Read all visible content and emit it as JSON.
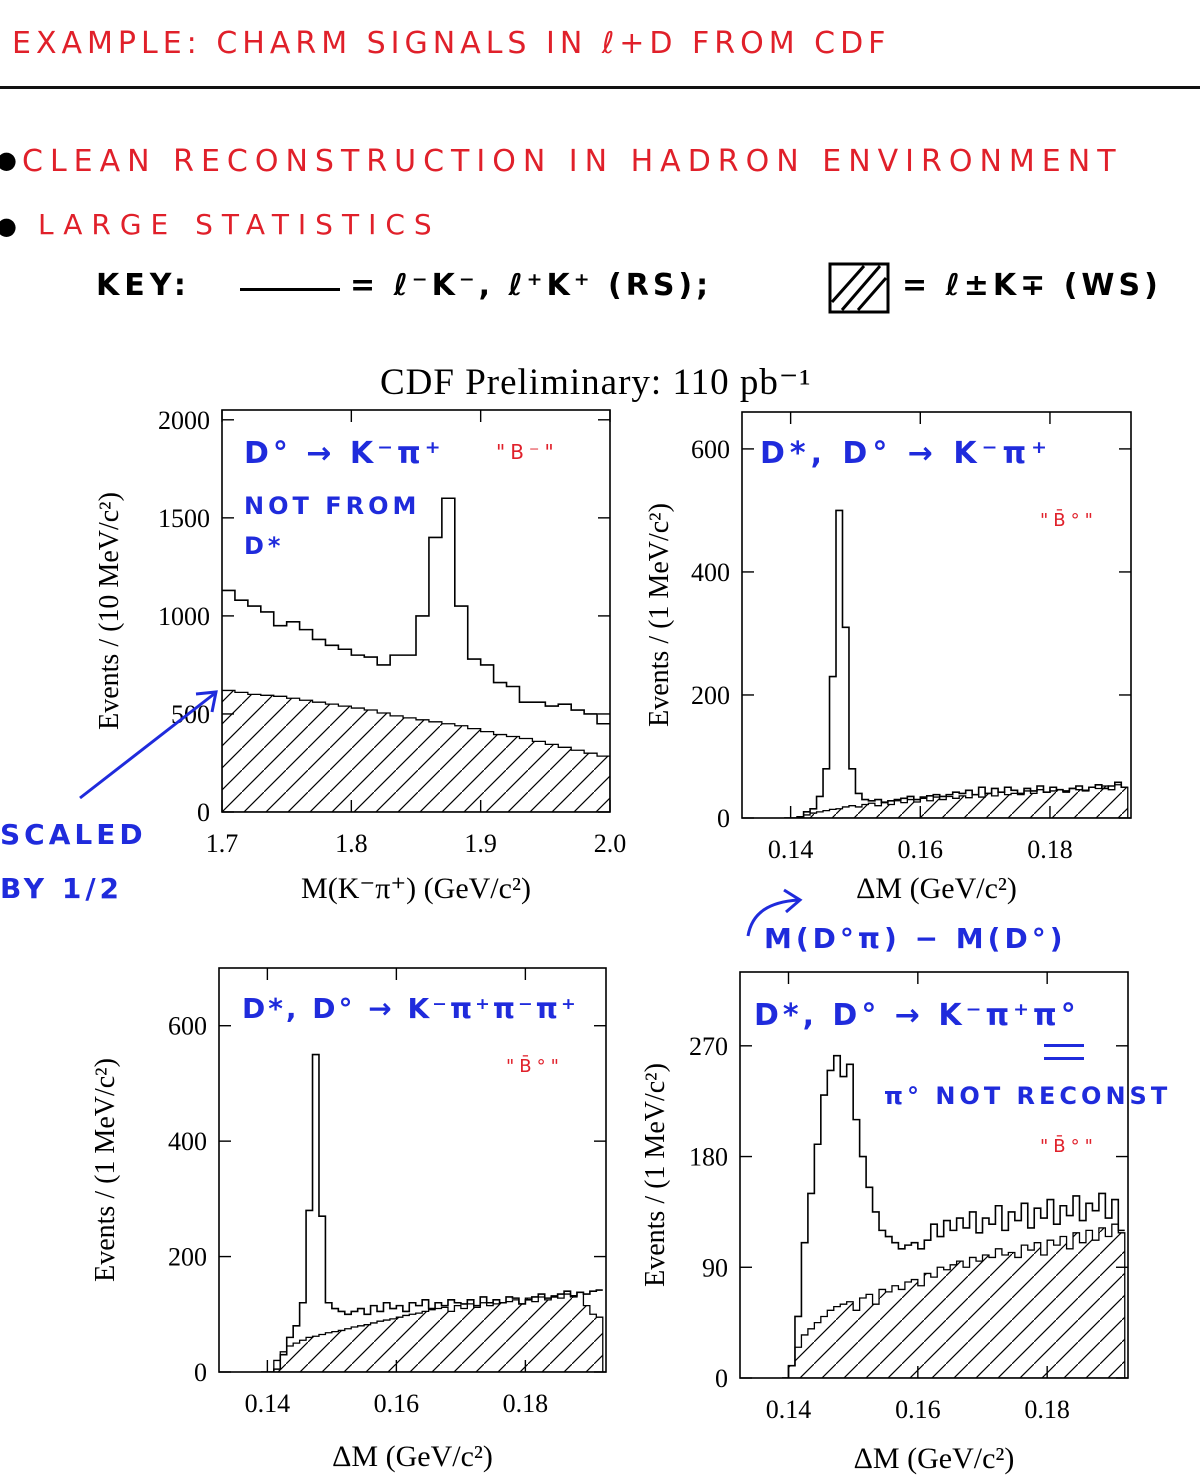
{
  "header": {
    "title": "EXAMPLE: CHARM SIGNALS IN ℓ+D FROM CDF",
    "bullet1": "CLEAN RECONSTRUCTION IN HADRON ENVIRONMENT",
    "bullet2": "LARGE STATISTICS",
    "key_label": "KEY:",
    "key_rs": "= ℓ⁻K⁻, ℓ⁺K⁺ (RS);",
    "key_ws": "= ℓ±K∓ (WS)"
  },
  "annotations": {
    "scaled_line1": "SCALED",
    "scaled_line2": "BY 1/2",
    "dm_def": "M(D°π) − M(D°)"
  },
  "colors": {
    "red": "#e0202a",
    "blue": "#1f2bdc",
    "black": "#000000"
  },
  "chart_data": [
    {
      "type": "area",
      "figure_title": "CDF Preliminary:  110 pb⁻¹",
      "panel_label": "D° → K⁻π⁺",
      "panel_note": "NOT FROM D*",
      "tag": "\"B⁻\"",
      "xlabel": "M(K⁻π⁺) (GeV/c²)",
      "ylabel": "Events / (10 MeV/c²)",
      "xlim": [
        1.7,
        2.0
      ],
      "ylim": [
        0,
        2050
      ],
      "xticks": [
        "1.7",
        "1.8",
        "1.9",
        "2.0"
      ],
      "yticks": [
        "0",
        "500",
        "1000",
        "1500",
        "2000"
      ],
      "bin_width": 0.01,
      "x": [
        1.7,
        1.71,
        1.72,
        1.73,
        1.74,
        1.75,
        1.76,
        1.77,
        1.78,
        1.79,
        1.8,
        1.81,
        1.82,
        1.83,
        1.84,
        1.85,
        1.86,
        1.87,
        1.88,
        1.89,
        1.9,
        1.91,
        1.92,
        1.93,
        1.94,
        1.95,
        1.96,
        1.97,
        1.98,
        1.99
      ],
      "series": [
        {
          "line": "solid",
          "values": [
            1130,
            1080,
            1050,
            1020,
            950,
            970,
            930,
            880,
            850,
            830,
            800,
            790,
            750,
            800,
            800,
            1000,
            1400,
            1600,
            1050,
            780,
            750,
            660,
            640,
            560,
            560,
            540,
            550,
            520,
            500,
            450
          ]
        },
        {
          "fill": "hatched",
          "values": [
            620,
            610,
            600,
            595,
            590,
            580,
            570,
            560,
            550,
            540,
            530,
            520,
            505,
            490,
            480,
            470,
            460,
            450,
            440,
            425,
            410,
            395,
            385,
            375,
            360,
            345,
            330,
            315,
            300,
            285
          ]
        }
      ],
      "legend": "none"
    },
    {
      "type": "area",
      "panel_label": "D*, D° → K⁻π⁺",
      "tag": "\"B̄°\"",
      "xlabel": "ΔM (GeV/c²)",
      "ylabel": "Events / (1 MeV/c²)",
      "xlim": [
        0.1325,
        0.1925
      ],
      "ylim": [
        0,
        660
      ],
      "xticks": [
        "0.14",
        "0.16",
        "0.18"
      ],
      "yticks": [
        "0",
        "200",
        "400",
        "600"
      ],
      "bin_width": 0.001,
      "x": [
        0.139,
        0.14,
        0.141,
        0.142,
        0.143,
        0.144,
        0.145,
        0.146,
        0.147,
        0.148,
        0.149,
        0.15,
        0.151,
        0.152,
        0.153,
        0.154,
        0.155,
        0.156,
        0.157,
        0.158,
        0.159,
        0.16,
        0.161,
        0.162,
        0.163,
        0.164,
        0.165,
        0.166,
        0.167,
        0.168,
        0.169,
        0.17,
        0.171,
        0.172,
        0.173,
        0.174,
        0.175,
        0.176,
        0.177,
        0.178,
        0.179,
        0.18,
        0.181,
        0.182,
        0.183,
        0.184,
        0.185,
        0.186,
        0.187,
        0.188,
        0.189,
        0.19,
        0.191
      ],
      "series": [
        {
          "line": "solid",
          "values": [
            0,
            0,
            2,
            10,
            15,
            35,
            80,
            230,
            500,
            310,
            80,
            40,
            30,
            28,
            30,
            25,
            28,
            30,
            32,
            35,
            30,
            34,
            36,
            38,
            35,
            38,
            42,
            40,
            45,
            38,
            50,
            40,
            48,
            42,
            50,
            45,
            40,
            48,
            44,
            52,
            42,
            50,
            46,
            44,
            48,
            52,
            45,
            50,
            54,
            48,
            52,
            58,
            50
          ]
        },
        {
          "fill": "hatched",
          "values": [
            0,
            0,
            2,
            5,
            8,
            10,
            12,
            14,
            15,
            18,
            20,
            18,
            22,
            24,
            20,
            26,
            22,
            28,
            25,
            30,
            26,
            32,
            28,
            34,
            30,
            35,
            32,
            36,
            33,
            38,
            34,
            40,
            36,
            42,
            38,
            40,
            38,
            44,
            40,
            46,
            42,
            44,
            46,
            42,
            48,
            46,
            44,
            50,
            48,
            52,
            46,
            54,
            50
          ]
        }
      ],
      "legend": "none"
    },
    {
      "type": "area",
      "panel_label": "D*, D° → K⁻π⁺π⁻π⁺",
      "tag": "\"B̄°\"",
      "xlabel": "ΔM (GeV/c²)",
      "ylabel": "Events / (1 MeV/c²)",
      "xlim": [
        0.1325,
        0.1925
      ],
      "ylim": [
        0,
        700
      ],
      "xticks": [
        "0.14",
        "0.16",
        "0.18"
      ],
      "yticks": [
        "0",
        "200",
        "400",
        "600"
      ],
      "bin_width": 0.001,
      "x": [
        0.139,
        0.14,
        0.141,
        0.142,
        0.143,
        0.144,
        0.145,
        0.146,
        0.147,
        0.148,
        0.149,
        0.15,
        0.151,
        0.152,
        0.153,
        0.154,
        0.155,
        0.156,
        0.157,
        0.158,
        0.159,
        0.16,
        0.161,
        0.162,
        0.163,
        0.164,
        0.165,
        0.166,
        0.167,
        0.168,
        0.169,
        0.17,
        0.171,
        0.172,
        0.173,
        0.174,
        0.175,
        0.176,
        0.177,
        0.178,
        0.179,
        0.18,
        0.181,
        0.182,
        0.183,
        0.184,
        0.185,
        0.186,
        0.187,
        0.188,
        0.189,
        0.19,
        0.191
      ],
      "series": [
        {
          "line": "solid",
          "values": [
            0,
            0,
            5,
            30,
            60,
            80,
            120,
            280,
            550,
            270,
            120,
            110,
            105,
            100,
            105,
            110,
            100,
            115,
            105,
            120,
            110,
            115,
            105,
            120,
            115,
            125,
            110,
            120,
            115,
            125,
            120,
            118,
            125,
            115,
            130,
            120,
            125,
            120,
            130,
            128,
            118,
            125,
            130,
            135,
            128,
            130,
            135,
            140,
            132,
            138,
            135,
            140,
            142
          ]
        },
        {
          "fill": "hatched",
          "values": [
            0,
            0,
            20,
            35,
            45,
            50,
            55,
            60,
            62,
            65,
            68,
            70,
            72,
            75,
            78,
            80,
            82,
            85,
            88,
            90,
            92,
            95,
            98,
            100,
            102,
            105,
            108,
            110,
            112,
            105,
            115,
            110,
            118,
            112,
            120,
            115,
            118,
            120,
            122,
            125,
            118,
            128,
            122,
            130,
            125,
            132,
            128,
            135,
            130,
            138,
            115,
            100,
            95
          ]
        }
      ],
      "legend": "none"
    },
    {
      "type": "area",
      "panel_label": "D*, D° → K⁻π⁺π°",
      "panel_note": "π° NOT RECONST",
      "tag": "\"B̄°\"",
      "xlabel": "ΔM (GeV/c²)",
      "ylabel": "Events / (1 MeV/c²)",
      "xlim": [
        0.1325,
        0.1925
      ],
      "ylim": [
        0,
        330
      ],
      "xticks": [
        "0.14",
        "0.16",
        "0.18"
      ],
      "yticks": [
        "0",
        "90",
        "180",
        "270"
      ],
      "bin_width": 0.001,
      "x": [
        0.139,
        0.14,
        0.141,
        0.142,
        0.143,
        0.144,
        0.145,
        0.146,
        0.147,
        0.148,
        0.149,
        0.15,
        0.151,
        0.152,
        0.153,
        0.154,
        0.155,
        0.156,
        0.157,
        0.158,
        0.159,
        0.16,
        0.161,
        0.162,
        0.163,
        0.164,
        0.165,
        0.166,
        0.167,
        0.168,
        0.169,
        0.17,
        0.171,
        0.172,
        0.173,
        0.174,
        0.175,
        0.176,
        0.177,
        0.178,
        0.179,
        0.18,
        0.181,
        0.182,
        0.183,
        0.184,
        0.185,
        0.186,
        0.187,
        0.188,
        0.189,
        0.19,
        0.191
      ],
      "series": [
        {
          "line": "solid",
          "values": [
            0,
            10,
            50,
            110,
            150,
            190,
            230,
            250,
            262,
            245,
            255,
            210,
            180,
            155,
            135,
            120,
            115,
            110,
            105,
            108,
            110,
            105,
            112,
            125,
            115,
            128,
            120,
            130,
            122,
            135,
            118,
            130,
            125,
            140,
            120,
            135,
            128,
            142,
            122,
            138,
            130,
            145,
            125,
            140,
            132,
            148,
            128,
            142,
            136,
            150,
            130,
            145,
            120
          ]
        },
        {
          "fill": "hatched",
          "values": [
            0,
            10,
            25,
            35,
            40,
            45,
            50,
            55,
            58,
            60,
            62,
            55,
            65,
            68,
            60,
            72,
            70,
            75,
            72,
            78,
            80,
            75,
            85,
            82,
            90,
            88,
            92,
            95,
            90,
            98,
            95,
            100,
            98,
            105,
            100,
            102,
            98,
            108,
            104,
            110,
            100,
            112,
            108,
            115,
            105,
            118,
            110,
            120,
            112,
            122,
            115,
            125,
            118
          ]
        }
      ],
      "legend": "none"
    }
  ]
}
